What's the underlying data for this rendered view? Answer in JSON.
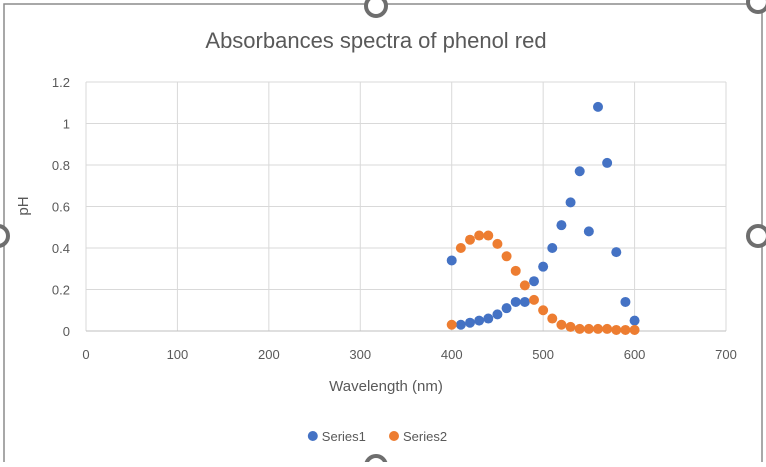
{
  "chart_data": {
    "type": "scatter",
    "title": "Absorbances spectra of phenol red",
    "x_label": "Wavelength (nm)",
    "y_label": "pH",
    "x": [
      400,
      410,
      420,
      430,
      440,
      450,
      460,
      470,
      480,
      490,
      500,
      510,
      520,
      530,
      540,
      550,
      560,
      570,
      580,
      590,
      600
    ],
    "series": [
      {
        "name": "Series1",
        "color": "#4472c4",
        "values": [
          0.34,
          0.03,
          0.04,
          0.05,
          0.06,
          0.08,
          0.11,
          0.14,
          0.14,
          0.24,
          0.31,
          0.4,
          0.51,
          0.62,
          0.77,
          0.48,
          1.08,
          0.81,
          0.38,
          0.14,
          0.05
        ]
      },
      {
        "name": "Series2",
        "color": "#ed7d31",
        "values": [
          0.03,
          0.4,
          0.44,
          0.46,
          0.46,
          0.42,
          0.36,
          0.29,
          0.22,
          0.15,
          0.1,
          0.06,
          0.03,
          0.02,
          0.01,
          0.01,
          0.01,
          0.01,
          0.005,
          0.005,
          0.005
        ]
      }
    ],
    "xlim": [
      0,
      700
    ],
    "xticks": [
      0,
      100,
      200,
      300,
      400,
      500,
      600,
      700
    ],
    "ylim": [
      0,
      1.2
    ],
    "yticks": [
      0,
      0.2,
      0.4,
      0.6,
      0.8,
      1,
      1.2
    ],
    "grid": true,
    "legend": "bottom"
  }
}
